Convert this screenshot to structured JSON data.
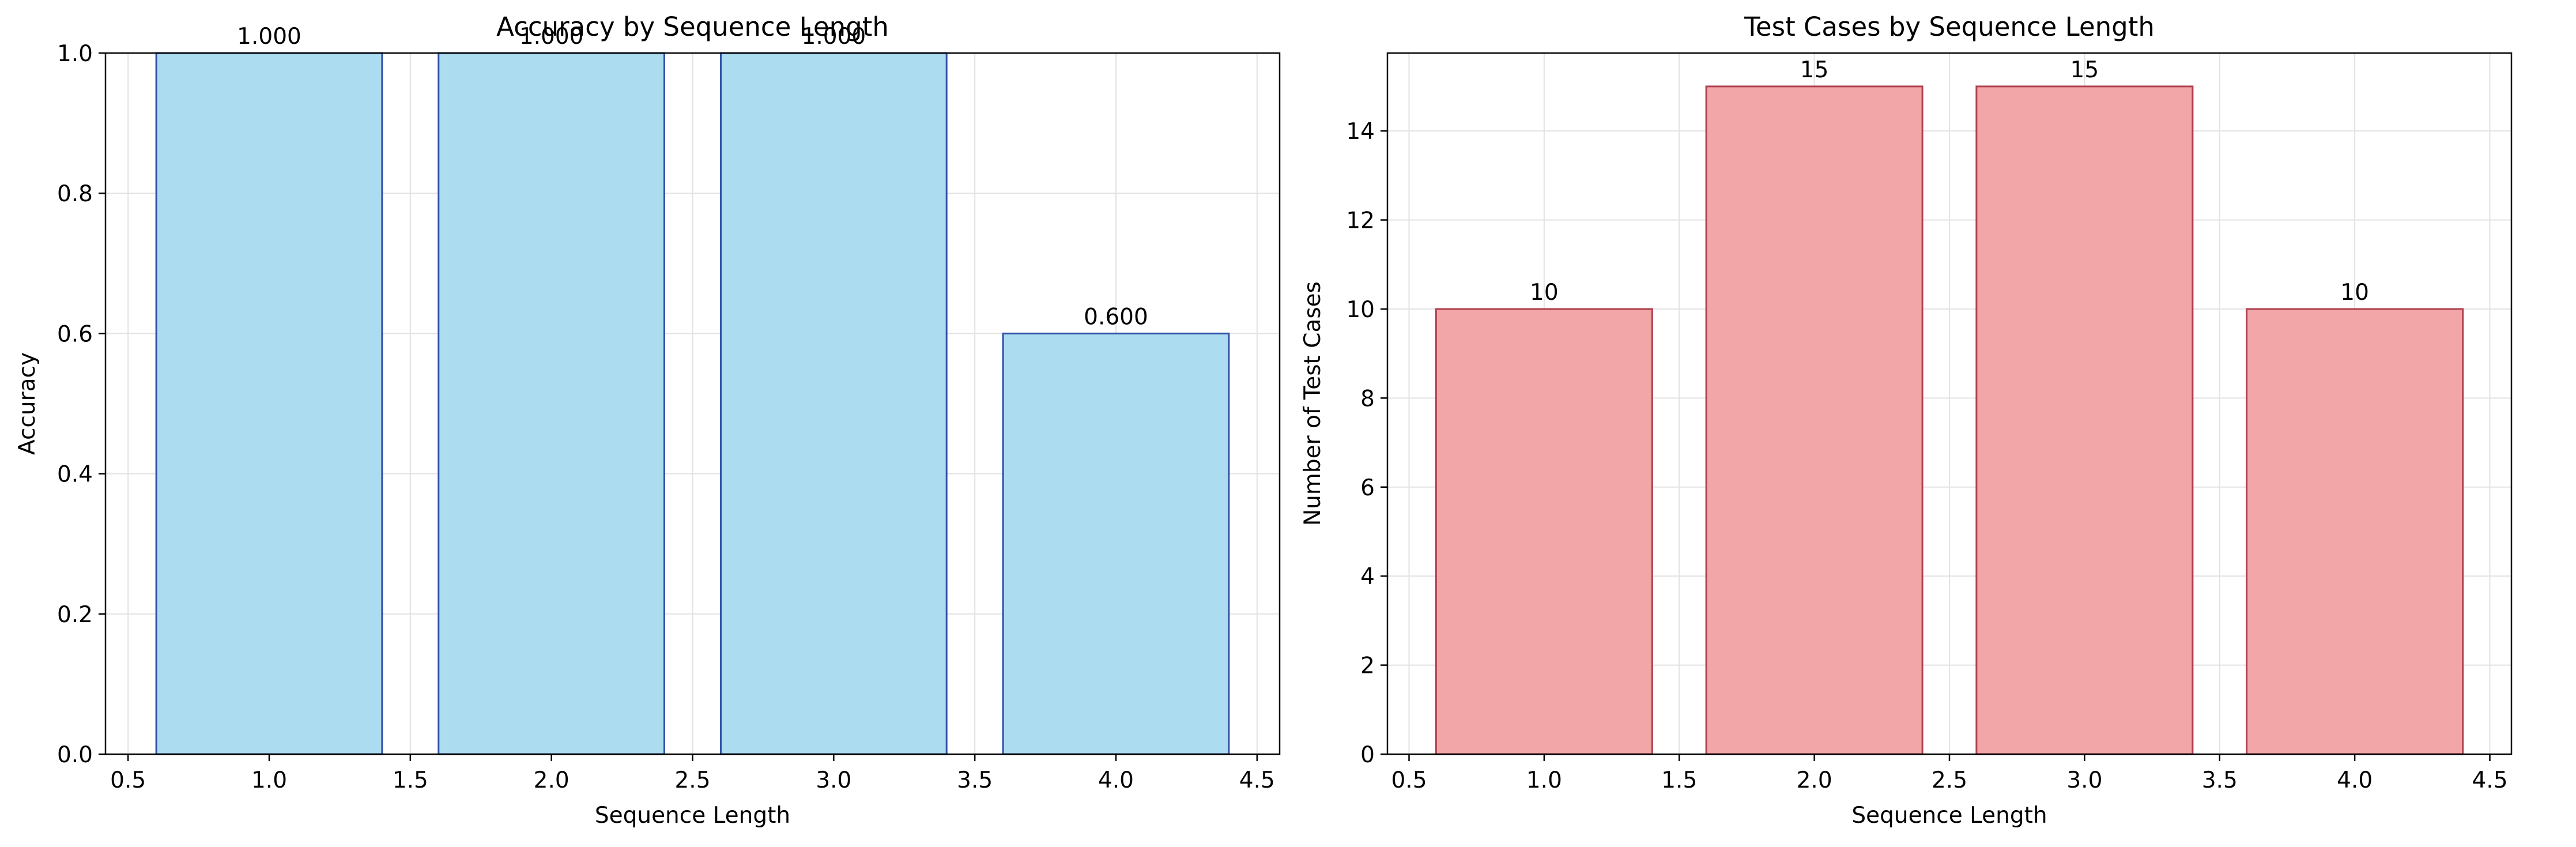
{
  "chart_data": [
    {
      "type": "bar",
      "title": "Accuracy by Sequence Length",
      "xlabel": "Sequence Length",
      "ylabel": "Accuracy",
      "x": [
        1,
        2,
        3,
        4
      ],
      "values": [
        1.0,
        1.0,
        1.0,
        0.6
      ],
      "value_labels": [
        "1.000",
        "1.000",
        "1.000",
        "0.600"
      ],
      "bar_width": 0.8,
      "xlim": [
        0.42,
        4.58
      ],
      "ylim": [
        0,
        1.0
      ],
      "xticks": [
        0.5,
        1.0,
        1.5,
        2.0,
        2.5,
        3.0,
        3.5,
        4.0,
        4.5
      ],
      "xtick_labels": [
        "0.5",
        "1.0",
        "1.5",
        "2.0",
        "2.5",
        "3.0",
        "3.5",
        "4.0",
        "4.5"
      ],
      "yticks": [
        0.0,
        0.2,
        0.4,
        0.6,
        0.8,
        1.0
      ],
      "ytick_labels": [
        "0.0",
        "0.2",
        "0.4",
        "0.6",
        "0.8",
        "1.0"
      ],
      "grid": true,
      "colors": {
        "fill": "#acdcef",
        "edge": "#3050a8"
      }
    },
    {
      "type": "bar",
      "title": "Test Cases by Sequence Length",
      "xlabel": "Sequence Length",
      "ylabel": "Number of Test Cases",
      "x": [
        1,
        2,
        3,
        4
      ],
      "values": [
        10,
        15,
        15,
        10
      ],
      "value_labels": [
        "10",
        "15",
        "15",
        "10"
      ],
      "bar_width": 0.8,
      "xlim": [
        0.42,
        4.58
      ],
      "ylim": [
        0,
        15.75
      ],
      "xticks": [
        0.5,
        1.0,
        1.5,
        2.0,
        2.5,
        3.0,
        3.5,
        4.0,
        4.5
      ],
      "xtick_labels": [
        "0.5",
        "1.0",
        "1.5",
        "2.0",
        "2.5",
        "3.0",
        "3.5",
        "4.0",
        "4.5"
      ],
      "yticks": [
        0,
        2,
        4,
        6,
        8,
        10,
        12,
        14
      ],
      "ytick_labels": [
        "0",
        "2",
        "4",
        "6",
        "8",
        "10",
        "12",
        "14"
      ],
      "grid": true,
      "colors": {
        "fill": "#f2a6a7",
        "edge": "#b04050"
      }
    }
  ]
}
